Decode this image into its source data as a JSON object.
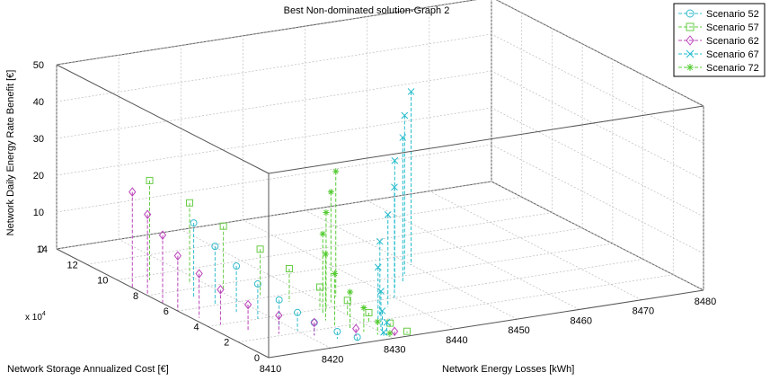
{
  "chart_data": {
    "type": "scatter",
    "title": "Best Non-dominated solution-Graph 2",
    "xlabel": "Network Energy Losses [kWh]",
    "ylabel": "Network Storage Annualized Cost [€]",
    "zlabel": "Network Daily Energy Rate Benefit [€]",
    "y_exponent_label": "x 10",
    "y_exponent_power": "4",
    "xlim": [
      8410,
      8480
    ],
    "ylim": [
      0,
      140000
    ],
    "zlim": [
      0,
      50
    ],
    "x_ticks": [
      "8410",
      "8420",
      "8430",
      "8440",
      "8450",
      "8460",
      "8470",
      "8480"
    ],
    "y_ticks": [
      "0",
      "2",
      "4",
      "6",
      "8",
      "10",
      "12",
      "14"
    ],
    "z_ticks": [
      "0",
      "10",
      "20",
      "30",
      "40",
      "50"
    ],
    "grid": true,
    "legend_position": "top-right",
    "series": [
      {
        "name": "Scenario 52",
        "color": "#33bbcc",
        "marker": "circle",
        "points": [
          [
            8415,
            70000,
            20.5
          ],
          [
            8416,
            60000,
            16
          ],
          [
            8417,
            50000,
            12.5
          ],
          [
            8418,
            40000,
            9.5
          ],
          [
            8419,
            30000,
            7
          ],
          [
            8420,
            22000,
            5
          ],
          [
            8421,
            15000,
            3.5
          ],
          [
            8423,
            8000,
            2
          ],
          [
            8425,
            3000,
            1
          ]
        ]
      },
      {
        "name": "Scenario 57",
        "color": "#66cc44",
        "marker": "square",
        "points": [
          [
            8414,
            95000,
            27
          ],
          [
            8418,
            85000,
            22
          ],
          [
            8421,
            75000,
            17
          ],
          [
            8424,
            63000,
            12.5
          ],
          [
            8426,
            52000,
            9
          ],
          [
            8428,
            40000,
            6
          ],
          [
            8430,
            30000,
            4
          ],
          [
            8431,
            20000,
            2.5
          ],
          [
            8432,
            10000,
            1.5
          ],
          [
            8433,
            3000,
            0.5
          ]
        ]
      },
      {
        "name": "Scenario 62",
        "color": "#bb44bb",
        "marker": "diamond",
        "points": [
          [
            8410,
            90000,
            26
          ],
          [
            8410,
            80000,
            22
          ],
          [
            8410,
            70000,
            18.5
          ],
          [
            8410,
            60000,
            15
          ],
          [
            8411,
            50000,
            12
          ],
          [
            8412,
            40000,
            9.5
          ],
          [
            8414,
            30000,
            7
          ],
          [
            8417,
            22000,
            5
          ],
          [
            8421,
            15000,
            3.5
          ],
          [
            8426,
            8000,
            2
          ],
          [
            8431,
            3000,
            1
          ]
        ]
      },
      {
        "name": "Scenario 67",
        "color": "#22bbcc",
        "marker": "x",
        "points": [
          [
            8450,
            70000,
            47
          ],
          [
            8447,
            62000,
            43
          ],
          [
            8445,
            55000,
            39
          ],
          [
            8442,
            48000,
            35
          ],
          [
            8440,
            40000,
            30
          ],
          [
            8437,
            32000,
            25
          ],
          [
            8434,
            25000,
            20
          ],
          [
            8432,
            18000,
            15
          ],
          [
            8431,
            12000,
            10
          ],
          [
            8430,
            7000,
            6
          ],
          [
            8430,
            4000,
            3.5
          ],
          [
            8429,
            2000,
            1.5
          ]
        ]
      },
      {
        "name": "Scenario 72",
        "color": "#55cc33",
        "marker": "star",
        "points": [
          [
            8433,
            50000,
            34
          ],
          [
            8431,
            45000,
            30
          ],
          [
            8429,
            40000,
            26
          ],
          [
            8427,
            34000,
            22
          ],
          [
            8426,
            28000,
            18
          ],
          [
            8426,
            22000,
            14
          ],
          [
            8427,
            16000,
            10
          ],
          [
            8428,
            11000,
            6.5
          ],
          [
            8429,
            6000,
            3.5
          ],
          [
            8430,
            2000,
            1
          ]
        ]
      }
    ]
  }
}
